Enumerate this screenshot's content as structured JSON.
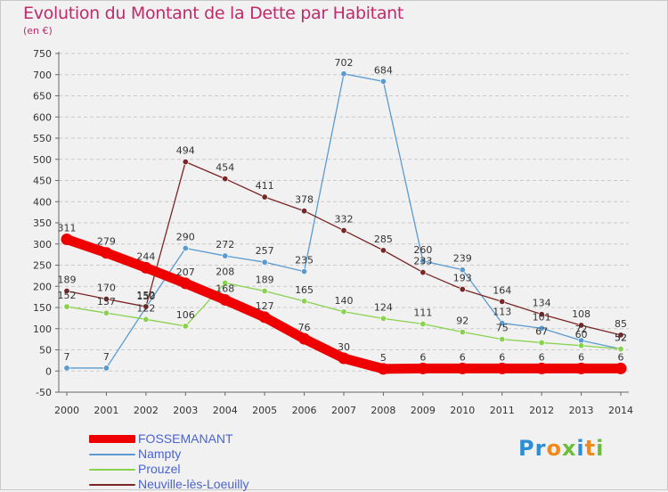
{
  "title": "Evolution du Montant de la Dette par Habitant",
  "subtitle": "(en €)",
  "logo_text": "Proxiti",
  "chart_data": {
    "type": "line",
    "title": "Evolution du Montant de la Dette par Habitant",
    "subtitle": "(en €)",
    "xlabel": "",
    "ylabel": "",
    "x": [
      2000,
      2001,
      2002,
      2003,
      2004,
      2005,
      2006,
      2007,
      2008,
      2009,
      2010,
      2011,
      2012,
      2013,
      2014
    ],
    "ylim": [
      -50,
      750
    ],
    "yticks": [
      -50,
      0,
      50,
      100,
      150,
      200,
      250,
      300,
      350,
      400,
      450,
      500,
      550,
      600,
      650,
      700,
      750
    ],
    "grid": "horizontal",
    "legend_position": "bottom-left",
    "series": [
      {
        "name": "FOSSEMANANT",
        "color": "#ee0000",
        "thick": true,
        "values": [
          311,
          279,
          244,
          207,
          168,
          127,
          76,
          30,
          5,
          6,
          6,
          6,
          6,
          6,
          6
        ]
      },
      {
        "name": "Nampty",
        "color": "#5b9ad0",
        "thick": false,
        "values": [
          7,
          7,
          150,
          290,
          272,
          257,
          235,
          702,
          684,
          260,
          239,
          113,
          101,
          72,
          52
        ]
      },
      {
        "name": "Prouzel",
        "color": "#88d24e",
        "thick": false,
        "values": [
          152,
          137,
          122,
          106,
          208,
          189,
          165,
          140,
          124,
          111,
          92,
          75,
          67,
          60,
          52
        ]
      },
      {
        "name": "Neuville-lès-Loeuilly",
        "color": "#7a2626",
        "thick": false,
        "values": [
          189,
          170,
          152,
          494,
          454,
          411,
          378,
          332,
          285,
          233,
          193,
          164,
          134,
          108,
          85
        ]
      }
    ]
  }
}
